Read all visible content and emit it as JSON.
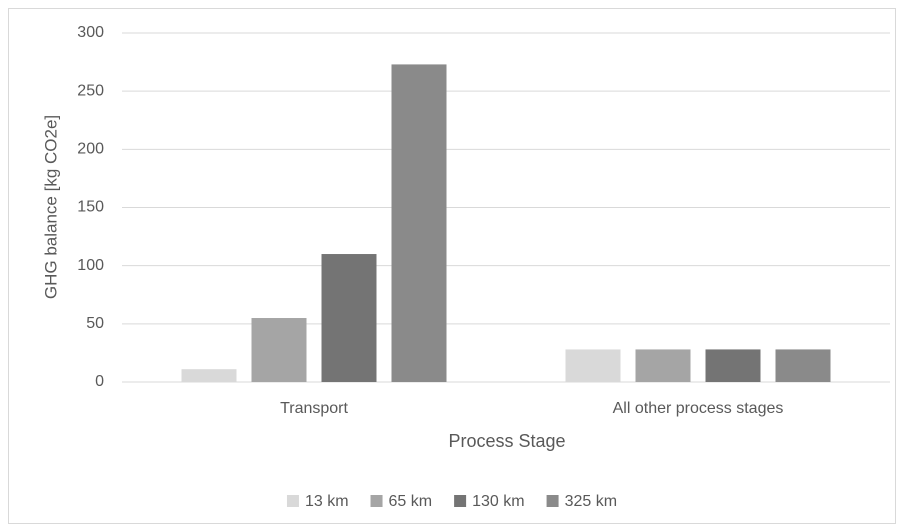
{
  "chart_data": {
    "type": "bar",
    "x_label": "Process Stage",
    "y_label": "GHG balance [kg CO2e]",
    "categories": [
      "Transport",
      "All other process stages"
    ],
    "series": [
      {
        "name": "13 km",
        "color": "#d9d9d9",
        "values": [
          11,
          28
        ]
      },
      {
        "name": "65 km",
        "color": "#a5a5a5",
        "values": [
          55,
          28
        ]
      },
      {
        "name": "130 km",
        "color": "#747474",
        "values": [
          110,
          28
        ]
      },
      {
        "name": "325 km",
        "color": "#8a8a8a",
        "values": [
          273,
          28
        ]
      }
    ],
    "ylim": [
      0,
      300
    ],
    "yticks": [
      0,
      50,
      100,
      150,
      200,
      250,
      300
    ],
    "grid": true,
    "legend": "bottom"
  }
}
